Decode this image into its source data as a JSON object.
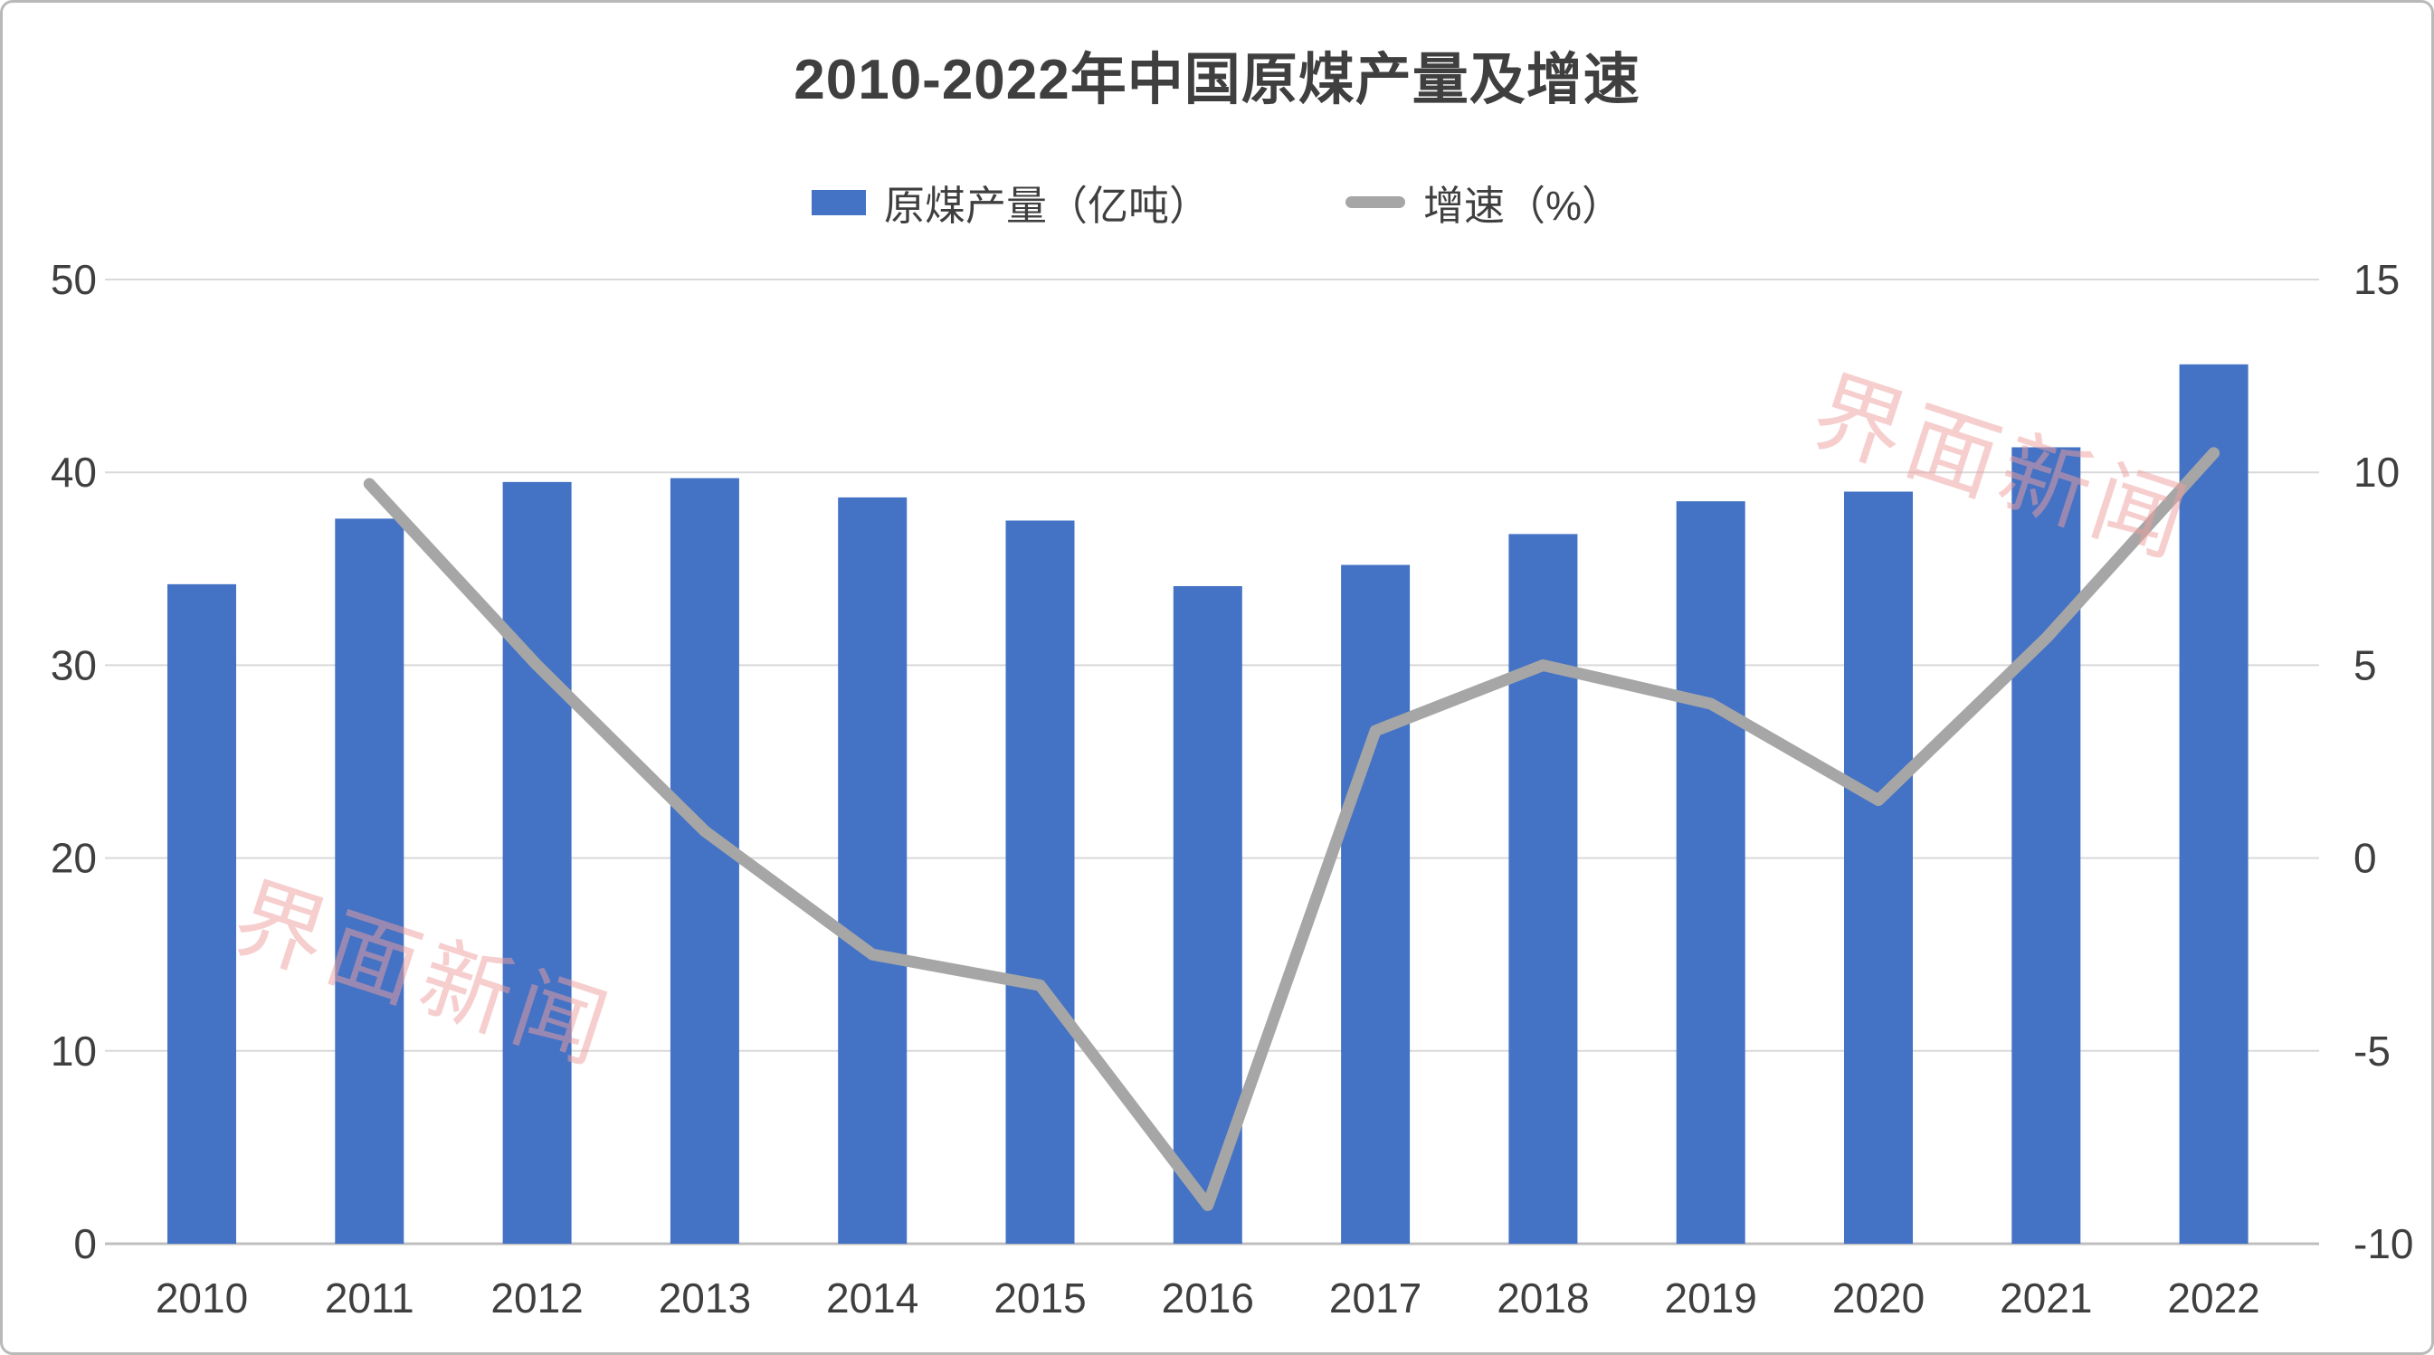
{
  "chart_data": {
    "type": "bar",
    "combo": true,
    "title": "2010-2022年中国原煤产量及增速",
    "categories": [
      "2010",
      "2011",
      "2012",
      "2013",
      "2014",
      "2015",
      "2016",
      "2017",
      "2018",
      "2019",
      "2020",
      "2021",
      "2022"
    ],
    "series": [
      {
        "name": "原煤产量（亿吨）",
        "type": "bar",
        "axis": "left",
        "values": [
          34.2,
          37.6,
          39.5,
          39.7,
          38.7,
          37.5,
          34.1,
          35.2,
          36.8,
          38.5,
          39.0,
          41.3,
          45.6
        ]
      },
      {
        "name": "增速（%）",
        "type": "line",
        "axis": "right",
        "values": [
          null,
          9.7,
          5.0,
          0.7,
          -2.5,
          -3.3,
          -9.0,
          3.3,
          5.0,
          4.0,
          1.5,
          5.7,
          10.5
        ]
      }
    ],
    "left_axis": {
      "min": 0,
      "max": 50,
      "ticks": [
        0,
        10,
        20,
        30,
        40,
        50
      ]
    },
    "right_axis": {
      "min": -10,
      "max": 15,
      "ticks": [
        -10,
        -5,
        0,
        5,
        10,
        15
      ]
    },
    "grid": true,
    "legend_position": "top"
  },
  "legend": {
    "bar_label": "原煤产量（亿吨）",
    "line_label": "增速（%）"
  },
  "watermark": {
    "text": "界面新闻"
  },
  "colors": {
    "bar": "#4472c4",
    "line": "#a6a6a6",
    "grid": "#d9d9d9",
    "axis_line": "#bfbfbf",
    "text": "#3f3f3f",
    "watermark": "rgba(238,158,158,0.5)"
  }
}
